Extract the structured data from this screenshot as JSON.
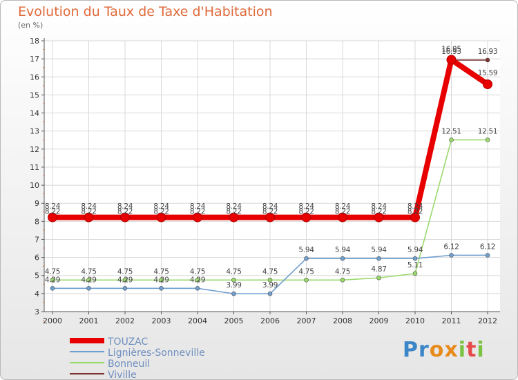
{
  "chart_data": {
    "type": "line",
    "title": "Evolution du Taux de Taxe d'Habitation",
    "ylabel": "(en %)",
    "xlabel": "",
    "ylim": [
      3,
      18
    ],
    "yticks": [
      "3",
      "4",
      "5",
      "6",
      "7",
      "8",
      "9",
      "10",
      "11",
      "12",
      "13",
      "14",
      "15",
      "16",
      "17",
      "18"
    ],
    "categories": [
      "2000",
      "2001",
      "2002",
      "2003",
      "2004",
      "2005",
      "2006",
      "2007",
      "2008",
      "2009",
      "2010",
      "2011",
      "2012"
    ],
    "grid": true,
    "series": [
      {
        "name": "TOUZAC",
        "color": "#e80000",
        "values": [
          8.22,
          8.22,
          8.22,
          8.22,
          8.22,
          8.22,
          8.22,
          8.22,
          8.22,
          8.22,
          8.22,
          16.95,
          15.59
        ],
        "labels": [
          "8.22",
          "8.22",
          "8.22",
          "8.22",
          "8.22",
          "8.22",
          "8.22",
          "8.22",
          "8.22",
          "8.22",
          "8.22",
          "16.95",
          "15.59"
        ]
      },
      {
        "name": "Lignières-Sonneville",
        "color": "#6f9fcf",
        "values": [
          4.29,
          4.29,
          4.29,
          4.29,
          4.29,
          3.99,
          3.99,
          5.94,
          5.94,
          5.94,
          5.94,
          6.12,
          6.12
        ],
        "labels": [
          "4.29",
          "4.29",
          "4.29",
          "4.29",
          "4.29",
          "3.99",
          "3.99",
          "5.94",
          "5.94",
          "5.94",
          "5.94",
          "6.12",
          "6.12"
        ]
      },
      {
        "name": "Bonneuil",
        "color": "#9ad96b",
        "values": [
          4.75,
          4.75,
          4.75,
          4.75,
          4.75,
          4.75,
          4.75,
          4.75,
          4.75,
          4.87,
          5.11,
          12.51,
          12.51
        ],
        "labels": [
          "4.75",
          "4.75",
          "4.75",
          "4.75",
          "4.75",
          "4.75",
          "4.75",
          "4.75",
          "4.75",
          "4.87",
          "5.11",
          "12.51",
          "12.51"
        ]
      },
      {
        "name": "Viville",
        "color": "#7a3030",
        "values": [
          8.24,
          8.24,
          8.24,
          8.24,
          8.24,
          8.24,
          8.24,
          8.24,
          8.24,
          8.24,
          8.24,
          16.93,
          16.93
        ],
        "labels": [
          "8.24",
          "8.24",
          "8.24",
          "8.24",
          "8.24",
          "8.24",
          "8.24",
          "8.24",
          "8.24",
          "8.24",
          "8.24",
          "16.93",
          "16.93"
        ]
      }
    ]
  },
  "logo": {
    "letters": [
      "P",
      "r",
      "o",
      "x",
      "i",
      "t",
      "i"
    ],
    "colors": [
      "#3a86c8",
      "#3a86c8",
      "#e88a1a",
      "#e88a1a",
      "#7cc242",
      "#e84a4a",
      "#7cc242"
    ]
  }
}
